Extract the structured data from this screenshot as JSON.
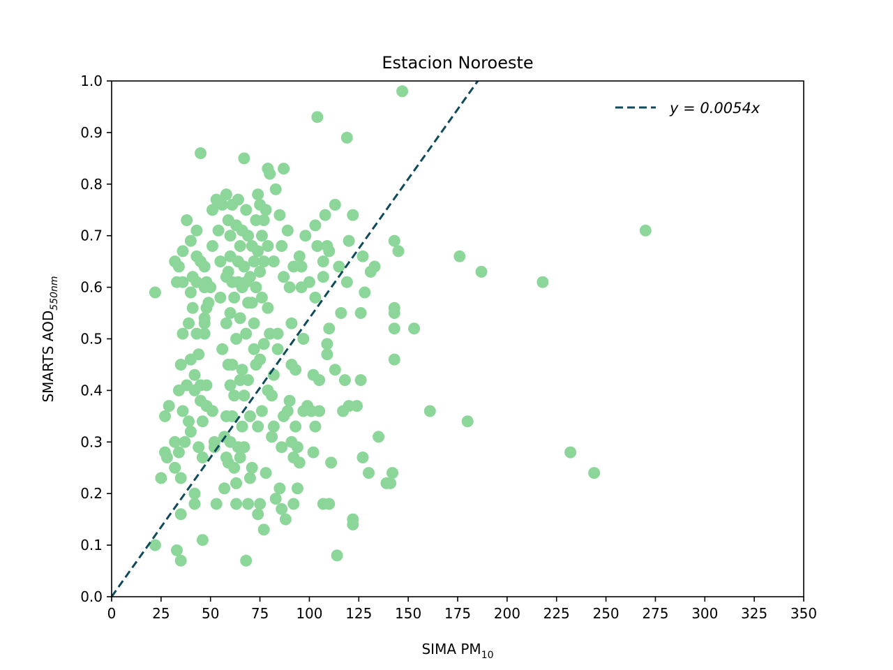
{
  "chart_data": {
    "type": "scatter",
    "title": "Estacion Noroeste",
    "xlabel": {
      "main": "SIMA PM",
      "sub": "10"
    },
    "ylabel": {
      "main": "SMARTS AOD",
      "sub": "550nm"
    },
    "xlim": [
      0,
      350
    ],
    "ylim": [
      0,
      1.0
    ],
    "xticks": [
      0,
      25,
      50,
      75,
      100,
      125,
      150,
      175,
      200,
      225,
      250,
      275,
      300,
      325,
      350
    ],
    "yticks": [
      0.0,
      0.1,
      0.2,
      0.3,
      0.4,
      0.5,
      0.6,
      0.7,
      0.8,
      0.9,
      1.0
    ],
    "xtick_labels": [
      "0",
      "25",
      "50",
      "75",
      "100",
      "125",
      "150",
      "175",
      "200",
      "225",
      "250",
      "275",
      "300",
      "325",
      "350"
    ],
    "ytick_labels": [
      "0.0",
      "0.1",
      "0.2",
      "0.3",
      "0.4",
      "0.5",
      "0.6",
      "0.7",
      "0.8",
      "0.9",
      "1.0"
    ],
    "grid": false,
    "legend": {
      "position": "top-right",
      "label": "y = 0.0054x"
    },
    "fit_line": {
      "slope": 0.0054,
      "style": "dashed",
      "color": "#0e4a5c"
    },
    "point_color": "#8cd69a",
    "points": [
      [
        22,
        0.59
      ],
      [
        22,
        0.1
      ],
      [
        25,
        0.23
      ],
      [
        27,
        0.28
      ],
      [
        27,
        0.35
      ],
      [
        28,
        0.27
      ],
      [
        29,
        0.37
      ],
      [
        32,
        0.65
      ],
      [
        32,
        0.3
      ],
      [
        32,
        0.25
      ],
      [
        33,
        0.61
      ],
      [
        33,
        0.09
      ],
      [
        34,
        0.64
      ],
      [
        34,
        0.28
      ],
      [
        34,
        0.4
      ],
      [
        35,
        0.07
      ],
      [
        35,
        0.16
      ],
      [
        35,
        0.23
      ],
      [
        35,
        0.45
      ],
      [
        36,
        0.67
      ],
      [
        36,
        0.51
      ],
      [
        36,
        0.36
      ],
      [
        36,
        0.61
      ],
      [
        37,
        0.3
      ],
      [
        38,
        0.73
      ],
      [
        38,
        0.41
      ],
      [
        39,
        0.53
      ],
      [
        39,
        0.34
      ],
      [
        40,
        0.69
      ],
      [
        40,
        0.59
      ],
      [
        40,
        0.46
      ],
      [
        40,
        0.32
      ],
      [
        41,
        0.56
      ],
      [
        41,
        0.62
      ],
      [
        42,
        0.43
      ],
      [
        42,
        0.2
      ],
      [
        42,
        0.18
      ],
      [
        42,
        0.4
      ],
      [
        43,
        0.71
      ],
      [
        43,
        0.66
      ],
      [
        43,
        0.61
      ],
      [
        43,
        0.51
      ],
      [
        44,
        0.47
      ],
      [
        44,
        0.29
      ],
      [
        45,
        0.65
      ],
      [
        45,
        0.86
      ],
      [
        45,
        0.41
      ],
      [
        45,
        0.38
      ],
      [
        46,
        0.11
      ],
      [
        46,
        0.27
      ],
      [
        46,
        0.34
      ],
      [
        47,
        0.6
      ],
      [
        47,
        0.54
      ],
      [
        47,
        0.53
      ],
      [
        47,
        0.51
      ],
      [
        47,
        0.64
      ],
      [
        48,
        0.61
      ],
      [
        48,
        0.56
      ],
      [
        48,
        0.41
      ],
      [
        48,
        0.37
      ],
      [
        49,
        0.57
      ],
      [
        50,
        0.6
      ],
      [
        51,
        0.75
      ],
      [
        51,
        0.68
      ],
      [
        51,
        0.36
      ],
      [
        52,
        0.3
      ],
      [
        52,
        0.29
      ],
      [
        53,
        0.77
      ],
      [
        53,
        0.18
      ],
      [
        54,
        0.71
      ],
      [
        55,
        0.65
      ],
      [
        55,
        0.58
      ],
      [
        56,
        0.76
      ],
      [
        56,
        0.48
      ],
      [
        57,
        0.21
      ],
      [
        57,
        0.31
      ],
      [
        58,
        0.78
      ],
      [
        58,
        0.62
      ],
      [
        58,
        0.53
      ],
      [
        58,
        0.35
      ],
      [
        58,
        0.27
      ],
      [
        59,
        0.73
      ],
      [
        59,
        0.63
      ],
      [
        59,
        0.45
      ],
      [
        59,
        0.26
      ],
      [
        60,
        0.7
      ],
      [
        60,
        0.66
      ],
      [
        60,
        0.55
      ],
      [
        60,
        0.41
      ],
      [
        60,
        0.3
      ],
      [
        61,
        0.76
      ],
      [
        61,
        0.61
      ],
      [
        61,
        0.45
      ],
      [
        61,
        0.35
      ],
      [
        62,
        0.58
      ],
      [
        62,
        0.39
      ],
      [
        62,
        0.25
      ],
      [
        63,
        0.72
      ],
      [
        63,
        0.5
      ],
      [
        63,
        0.22
      ],
      [
        63,
        0.18
      ],
      [
        64,
        0.77
      ],
      [
        64,
        0.65
      ],
      [
        64,
        0.61
      ],
      [
        64,
        0.29
      ],
      [
        65,
        0.68
      ],
      [
        65,
        0.54
      ],
      [
        65,
        0.42
      ],
      [
        65,
        0.27
      ],
      [
        66,
        0.71
      ],
      [
        66,
        0.6
      ],
      [
        66,
        0.44
      ],
      [
        66,
        0.33
      ],
      [
        67,
        0.85
      ],
      [
        67,
        0.64
      ],
      [
        67,
        0.39
      ],
      [
        67,
        0.29
      ],
      [
        68,
        0.75
      ],
      [
        68,
        0.61
      ],
      [
        68,
        0.51
      ],
      [
        68,
        0.07
      ],
      [
        69,
        0.7
      ],
      [
        69,
        0.57
      ],
      [
        69,
        0.42
      ],
      [
        69,
        0.18
      ],
      [
        70,
        0.62
      ],
      [
        70,
        0.35
      ],
      [
        70,
        0.23
      ],
      [
        71,
        0.68
      ],
      [
        71,
        0.57
      ],
      [
        71,
        0.25
      ],
      [
        72,
        0.65
      ],
      [
        72,
        0.53
      ],
      [
        72,
        0.48
      ],
      [
        73,
        0.73
      ],
      [
        73,
        0.6
      ],
      [
        73,
        0.45
      ],
      [
        74,
        0.78
      ],
      [
        74,
        0.67
      ],
      [
        74,
        0.33
      ],
      [
        74,
        0.16
      ],
      [
        75,
        0.76
      ],
      [
        75,
        0.63
      ],
      [
        75,
        0.46
      ],
      [
        75,
        0.18
      ],
      [
        76,
        0.7
      ],
      [
        76,
        0.58
      ],
      [
        76,
        0.36
      ],
      [
        77,
        0.73
      ],
      [
        77,
        0.65
      ],
      [
        77,
        0.49
      ],
      [
        77,
        0.13
      ],
      [
        78,
        0.75
      ],
      [
        78,
        0.24
      ],
      [
        79,
        0.83
      ],
      [
        79,
        0.68
      ],
      [
        79,
        0.56
      ],
      [
        79,
        0.4
      ],
      [
        80,
        0.82
      ],
      [
        80,
        0.51
      ],
      [
        81,
        0.39
      ],
      [
        81,
        0.31
      ],
      [
        82,
        0.65
      ],
      [
        82,
        0.43
      ],
      [
        82,
        0.33
      ],
      [
        83,
        0.79
      ],
      [
        83,
        0.19
      ],
      [
        84,
        0.51
      ],
      [
        84,
        0.48
      ],
      [
        85,
        0.74
      ],
      [
        85,
        0.21
      ],
      [
        86,
        0.68
      ],
      [
        86,
        0.29
      ],
      [
        86,
        0.17
      ],
      [
        87,
        0.83
      ],
      [
        87,
        0.62
      ],
      [
        87,
        0.35
      ],
      [
        88,
        0.15
      ],
      [
        89,
        0.71
      ],
      [
        89,
        0.36
      ],
      [
        90,
        0.6
      ],
      [
        90,
        0.38
      ],
      [
        91,
        0.45
      ],
      [
        91,
        0.3
      ],
      [
        91,
        0.53
      ],
      [
        92,
        0.64
      ],
      [
        92,
        0.27
      ],
      [
        92,
        0.18
      ],
      [
        93,
        0.44
      ],
      [
        93,
        0.33
      ],
      [
        94,
        0.29
      ],
      [
        94,
        0.21
      ],
      [
        95,
        0.66
      ],
      [
        95,
        0.26
      ],
      [
        96,
        0.64
      ],
      [
        96,
        0.6
      ],
      [
        97,
        0.5
      ],
      [
        97,
        0.36
      ],
      [
        98,
        0.7
      ],
      [
        99,
        0.37
      ],
      [
        100,
        0.61
      ],
      [
        101,
        0.36
      ],
      [
        102,
        0.43
      ],
      [
        102,
        0.28
      ],
      [
        103,
        0.72
      ],
      [
        103,
        0.58
      ],
      [
        103,
        0.33
      ],
      [
        104,
        0.68
      ],
      [
        104,
        0.93
      ],
      [
        105,
        0.36
      ],
      [
        105,
        0.42
      ],
      [
        107,
        0.65
      ],
      [
        107,
        0.62
      ],
      [
        107,
        0.18
      ],
      [
        108,
        0.74
      ],
      [
        109,
        0.68
      ],
      [
        109,
        0.49
      ],
      [
        109,
        0.47
      ],
      [
        110,
        0.67
      ],
      [
        110,
        0.52
      ],
      [
        110,
        0.18
      ],
      [
        111,
        0.26
      ],
      [
        113,
        0.76
      ],
      [
        113,
        0.44
      ],
      [
        114,
        0.08
      ],
      [
        115,
        0.64
      ],
      [
        116,
        0.55
      ],
      [
        117,
        0.36
      ],
      [
        118,
        0.42
      ],
      [
        119,
        0.89
      ],
      [
        119,
        0.61
      ],
      [
        120,
        0.69
      ],
      [
        120,
        0.37
      ],
      [
        122,
        0.74
      ],
      [
        122,
        0.15
      ],
      [
        122,
        0.14
      ],
      [
        124,
        0.37
      ],
      [
        126,
        0.55
      ],
      [
        126,
        0.42
      ],
      [
        127,
        0.66
      ],
      [
        127,
        0.27
      ],
      [
        128,
        0.59
      ],
      [
        130,
        0.24
      ],
      [
        131,
        0.63
      ],
      [
        133,
        0.64
      ],
      [
        135,
        0.31
      ],
      [
        139,
        0.22
      ],
      [
        141,
        0.22
      ],
      [
        142,
        0.24
      ],
      [
        143,
        0.69
      ],
      [
        143,
        0.56
      ],
      [
        143,
        0.55
      ],
      [
        143,
        0.52
      ],
      [
        143,
        0.46
      ],
      [
        145,
        0.67
      ],
      [
        147,
        0.98
      ],
      [
        153,
        0.52
      ],
      [
        161,
        0.36
      ],
      [
        176,
        0.66
      ],
      [
        180,
        0.34
      ],
      [
        187,
        0.63
      ],
      [
        218,
        0.61
      ],
      [
        232,
        0.28
      ],
      [
        244,
        0.24
      ],
      [
        270,
        0.71
      ]
    ]
  }
}
